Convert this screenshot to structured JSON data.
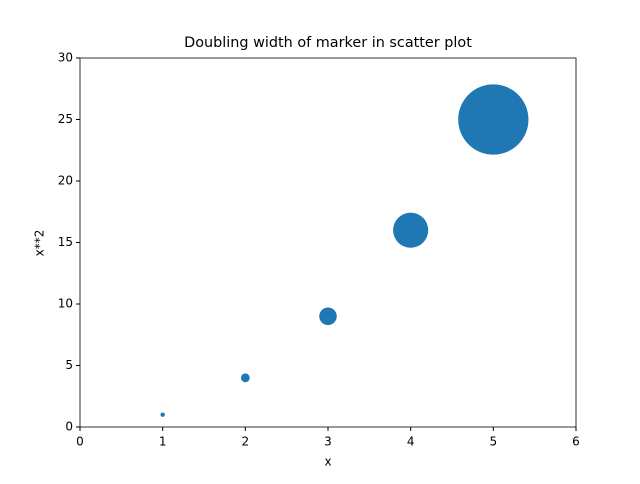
{
  "chart_data": {
    "type": "scatter",
    "title": "Doubling width of marker in scatter plot",
    "x_label": "x",
    "y_label": "x**2",
    "x": [
      1,
      2,
      3,
      4,
      5
    ],
    "values": [
      1,
      4,
      9,
      16,
      25
    ],
    "sizes": [
      10,
      40,
      160,
      640,
      2560
    ],
    "color": "#1f77b4",
    "xlim": [
      0,
      6
    ],
    "xticks": [
      0,
      1,
      2,
      3,
      4,
      5,
      6
    ],
    "ylim": [
      0,
      30
    ],
    "yticks": [
      0,
      5,
      10,
      15,
      20,
      25,
      30
    ]
  }
}
